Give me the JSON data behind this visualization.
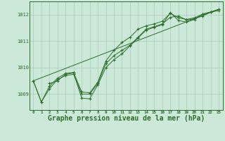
{
  "bg_color": "#cce8d8",
  "grid_color": "#aaccb8",
  "line_color": "#2d6e2d",
  "marker_color": "#2d6e2d",
  "xlabel": "Graphe pression niveau de la mer (hPa)",
  "xlabel_fontsize": 7,
  "ylabel_ticks": [
    1009,
    1010,
    1011,
    1012
  ],
  "xlim": [
    -0.5,
    23.5
  ],
  "ylim": [
    1008.4,
    1012.5
  ],
  "x_ticks": [
    0,
    1,
    2,
    3,
    4,
    5,
    6,
    7,
    8,
    9,
    10,
    11,
    12,
    13,
    14,
    15,
    16,
    17,
    18,
    19,
    20,
    21,
    22,
    23
  ],
  "series1": {
    "x": [
      0,
      1,
      2,
      3,
      4,
      5,
      6,
      7,
      8,
      9,
      10,
      11,
      12,
      13,
      14,
      15,
      16,
      17,
      18,
      19,
      20,
      21,
      22,
      23
    ],
    "y": [
      1009.5,
      1008.7,
      1009.2,
      1009.55,
      1009.7,
      1009.75,
      1009.0,
      1009.0,
      1009.4,
      1010.15,
      1010.45,
      1010.65,
      1010.85,
      1011.15,
      1011.45,
      1011.55,
      1011.65,
      1011.9,
      1011.95,
      1011.8,
      1011.85,
      1011.95,
      1012.1,
      1012.2
    ]
  },
  "series2": {
    "x": [
      0,
      1,
      2,
      3,
      4,
      5,
      6,
      7,
      8,
      9,
      10,
      11,
      12,
      13,
      14,
      15,
      16,
      17,
      18,
      19,
      20,
      21,
      22,
      23
    ],
    "y": [
      1009.5,
      1008.7,
      1009.3,
      1009.6,
      1009.78,
      1009.82,
      1009.08,
      1009.05,
      1009.45,
      1010.25,
      1010.65,
      1010.95,
      1011.15,
      1011.45,
      1011.58,
      1011.65,
      1011.75,
      1012.05,
      1011.88,
      1011.82,
      1011.88,
      1012.02,
      1012.1,
      1012.15
    ]
  },
  "series3": {
    "x": [
      2,
      3,
      4,
      5,
      6,
      7,
      8,
      9,
      10,
      11,
      12,
      13,
      14,
      15,
      16,
      17,
      18,
      19,
      20,
      21,
      22,
      23
    ],
    "y": [
      1009.4,
      1009.5,
      1009.75,
      1009.8,
      1008.85,
      1008.82,
      1009.35,
      1010.0,
      1010.3,
      1010.52,
      1010.82,
      1011.12,
      1011.42,
      1011.52,
      1011.62,
      1012.08,
      1011.78,
      1011.72,
      1011.82,
      1012.02,
      1012.1,
      1012.2
    ]
  },
  "series4": {
    "x": [
      0,
      23
    ],
    "y": [
      1009.5,
      1012.2
    ]
  }
}
